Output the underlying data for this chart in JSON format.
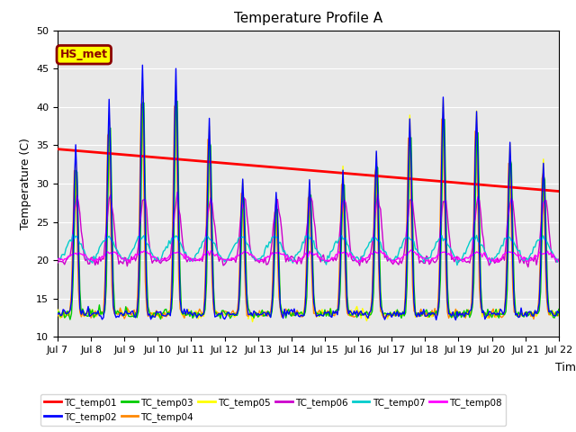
{
  "title": "Temperature Profile A",
  "xlabel": "Time",
  "ylabel": "Temperature (C)",
  "ylim": [
    10,
    50
  ],
  "bg_color": "#e8e8e8",
  "annotation_text": "HS_met",
  "annotation_bg": "#ffff00",
  "annotation_border": "#8b0000",
  "series_colors": {
    "TC_temp01": "#ff0000",
    "TC_temp02": "#0000ff",
    "TC_temp03": "#00cc00",
    "TC_temp04": "#ff8800",
    "TC_temp05": "#ffff00",
    "TC_temp06": "#cc00cc",
    "TC_temp07": "#00cccc",
    "TC_temp08": "#ff00ff"
  },
  "x_tick_labels": [
    "Jul 7",
    "Jul 8",
    "Jul 9",
    "Jul 10",
    "Jul 11",
    "Jul 12",
    "Jul 13",
    "Jul 14",
    "Jul 15",
    "Jul 16",
    "Jul 17",
    "Jul 18",
    "Jul 19",
    "Jul 20",
    "Jul 21",
    "Jul 22"
  ],
  "x_tick_positions": [
    0,
    24,
    48,
    72,
    96,
    120,
    144,
    168,
    192,
    216,
    240,
    264,
    288,
    312,
    336,
    360
  ],
  "tc01_start": 34.5,
  "tc01_end": 29.0,
  "tc01_gap_start": 48,
  "tc01_gap_end": 192
}
